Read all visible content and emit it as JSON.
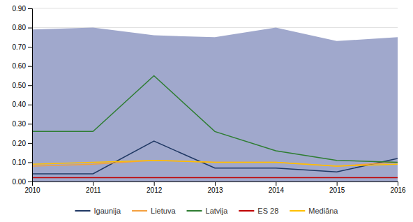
{
  "chart_data": {
    "type": "line",
    "x": [
      2010,
      2011,
      2012,
      2013,
      2014,
      2015,
      2016
    ],
    "series": [
      {
        "type": "area",
        "color": "#a0a8cc",
        "values": [
          0.79,
          0.8,
          0.76,
          0.75,
          0.8,
          0.73,
          0.75
        ],
        "lower": [
          0.0,
          0.0,
          0.0,
          0.0,
          0.0,
          0.0,
          0.0
        ]
      },
      {
        "name": "Igaunija",
        "color": "#1f3864",
        "values": [
          0.04,
          0.04,
          0.21,
          0.07,
          0.07,
          0.05,
          0.12
        ]
      },
      {
        "name": "Lietuva",
        "color": "#f4a040",
        "values": [
          0.08,
          0.09,
          0.11,
          0.1,
          0.1,
          0.08,
          0.1
        ]
      },
      {
        "name": "Latvija",
        "color": "#2e7d32",
        "values": [
          0.26,
          0.26,
          0.55,
          0.26,
          0.16,
          0.11,
          0.1
        ]
      },
      {
        "name": "ES 28",
        "color": "#c00000",
        "values": [
          0.02,
          0.02,
          0.02,
          0.02,
          0.02,
          0.02,
          0.02
        ]
      },
      {
        "name": "Mediāna",
        "color": "#ffc000",
        "values": [
          0.09,
          0.1,
          0.11,
          0.1,
          0.1,
          0.08,
          0.09
        ]
      }
    ],
    "xlim": [
      2010,
      2016
    ],
    "xticks": [
      2010,
      2011,
      2012,
      2013,
      2014,
      2015,
      2016
    ],
    "ylim": [
      0.0,
      0.9
    ],
    "yticks": [
      {
        "value": 0.0,
        "label": "0.00"
      },
      {
        "value": 0.1,
        "label": "0.10"
      },
      {
        "value": 0.2,
        "label": "0.20"
      },
      {
        "value": 0.3,
        "label": "0.30"
      },
      {
        "value": 0.4,
        "label": "0.40"
      },
      {
        "value": 0.5,
        "label": "0.50"
      },
      {
        "value": 0.6,
        "label": "0.60"
      },
      {
        "value": 0.7,
        "label": "0.70"
      },
      {
        "value": 0.8,
        "label": "0.80"
      },
      {
        "value": 0.9,
        "label": "0.90"
      }
    ],
    "grid": true,
    "legend": "bottom"
  }
}
